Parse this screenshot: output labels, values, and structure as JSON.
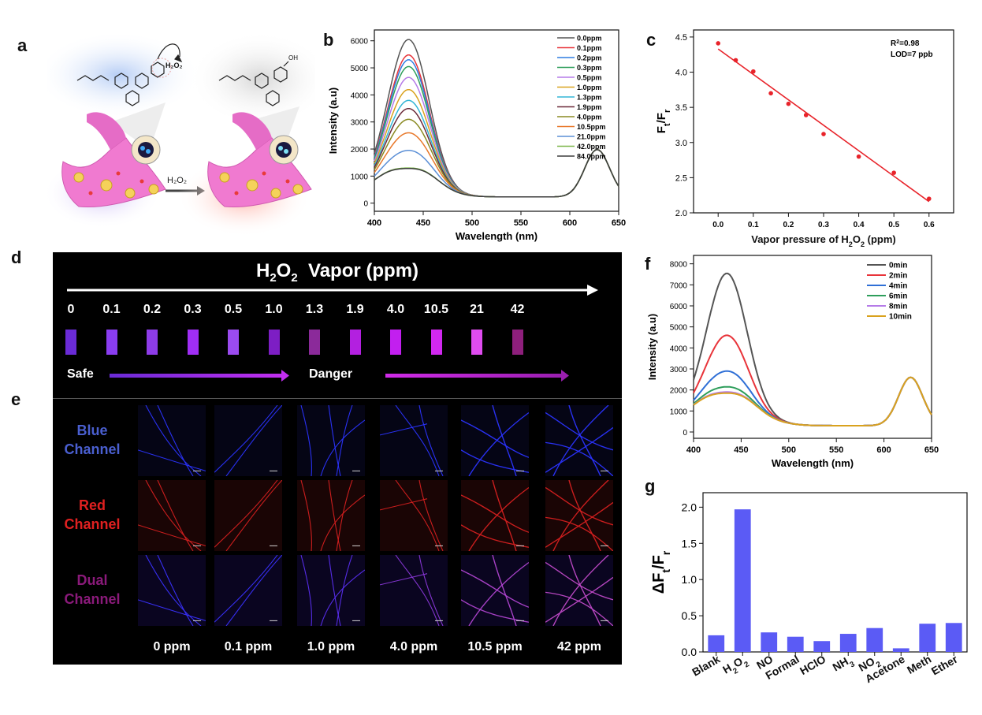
{
  "panel_labels": {
    "a": "a",
    "b": "b",
    "c": "c",
    "d": "d",
    "e": "e",
    "f": "f",
    "g": "g"
  },
  "schematic": {
    "reagent_left": "H2O2",
    "arrow_label": "H2O2",
    "oh_group": "OH"
  },
  "chart_data": [
    {
      "id": "b",
      "type": "line",
      "xlabel": "Wavelength (nm)",
      "ylabel": "Intensity (a.u)",
      "xlim": [
        400,
        650
      ],
      "ylim": [
        -300,
        6400
      ],
      "xticks": [
        400,
        450,
        500,
        550,
        600,
        650
      ],
      "yticks": [
        0,
        1000,
        2000,
        3000,
        4000,
        5000,
        6000
      ],
      "legend_position": "top-right",
      "peak_wavelength": 435,
      "series": [
        {
          "name": "0.0ppm",
          "color": "#555555",
          "peak": 6050
        },
        {
          "name": "0.1ppm",
          "color": "#e8343a",
          "peak": 5480
        },
        {
          "name": "0.2ppm",
          "color": "#2f7de1",
          "peak": 5300
        },
        {
          "name": "0.3ppm",
          "color": "#2e9e5b",
          "peak": 5050
        },
        {
          "name": "0.5ppm",
          "color": "#b57be8",
          "peak": 4650
        },
        {
          "name": "1.0ppm",
          "color": "#d9a21e",
          "peak": 4200
        },
        {
          "name": "1.3ppm",
          "color": "#33b5d6",
          "peak": 3800
        },
        {
          "name": "1.9ppm",
          "color": "#6b2a3a",
          "peak": 3500
        },
        {
          "name": "4.0ppm",
          "color": "#8a8a22",
          "peak": 3100
        },
        {
          "name": "10.5ppm",
          "color": "#e8782a",
          "peak": 2600
        },
        {
          "name": "21.0ppm",
          "color": "#5b8fd6",
          "peak": 1950
        },
        {
          "name": "42.0ppm",
          "color": "#7ab648",
          "peak": 1300
        },
        {
          "name": "84.0ppm",
          "color": "#3d3d3d",
          "peak": 1280
        }
      ]
    },
    {
      "id": "c",
      "type": "scatter",
      "xlabel": "Vapor pressure of H2O2 (ppm)",
      "ylabel": "Ft/Fr",
      "xlim": [
        -0.07,
        0.67
      ],
      "ylim": [
        2.0,
        4.6
      ],
      "xticks": [
        0.0,
        0.1,
        0.2,
        0.3,
        0.4,
        0.5,
        0.6
      ],
      "yticks": [
        2.0,
        2.5,
        3.0,
        3.5,
        4.0,
        4.5
      ],
      "annotations": [
        "R2=0.98",
        "LOD=7 ppb"
      ],
      "x": [
        0.0,
        0.05,
        0.1,
        0.15,
        0.2,
        0.25,
        0.3,
        0.4,
        0.5,
        0.6
      ],
      "y": [
        4.41,
        4.17,
        4.01,
        3.7,
        3.55,
        3.39,
        3.12,
        2.8,
        2.57,
        2.2
      ],
      "fit": {
        "x": [
          0.0,
          0.6
        ],
        "y": [
          4.33,
          2.16
        ],
        "color": "#e8232a"
      }
    },
    {
      "id": "f",
      "type": "line",
      "xlabel": "Wavelength (nm)",
      "ylabel": "Intensity (a.u)",
      "xlim": [
        400,
        650
      ],
      "ylim": [
        -300,
        8400
      ],
      "xticks": [
        400,
        450,
        500,
        550,
        600,
        650
      ],
      "yticks": [
        0,
        1000,
        2000,
        3000,
        4000,
        5000,
        6000,
        7000,
        8000
      ],
      "legend_position": "top-right",
      "series": [
        {
          "name": "0min",
          "color": "#555555",
          "peak": 7550
        },
        {
          "name": "2min",
          "color": "#e8343a",
          "peak": 4600
        },
        {
          "name": "4min",
          "color": "#2f6fd6",
          "peak": 2900
        },
        {
          "name": "6min",
          "color": "#2e9e5b",
          "peak": 2150
        },
        {
          "name": "8min",
          "color": "#b57be8",
          "peak": 1900
        },
        {
          "name": "10min",
          "color": "#d9a21e",
          "peak": 1850
        }
      ]
    },
    {
      "id": "g",
      "type": "bar",
      "ylabel": "ΔFt/Fr",
      "ylim": [
        0,
        2.2
      ],
      "yticks": [
        0.0,
        0.5,
        1.0,
        1.5,
        2.0
      ],
      "bar_color": "#5b5bf5",
      "categories": [
        "Blank",
        "H2O2",
        "NO",
        "Formal",
        "HClO",
        "NH3",
        "NO2",
        "Acetone",
        "Meth",
        "Ether"
      ],
      "values": [
        0.23,
        1.97,
        0.27,
        0.21,
        0.15,
        0.25,
        0.33,
        0.05,
        0.39,
        0.4
      ]
    }
  ],
  "panel_d": {
    "title_prefix": "H",
    "title_sub1": "2",
    "title_mid": "O",
    "title_sub2": "2",
    "title_suffix": "Vapor (ppm)",
    "concentrations": [
      "0",
      "0.1",
      "0.2",
      "0.3",
      "0.5",
      "1.0",
      "1.3",
      "1.9",
      "4.0",
      "10.5",
      "21",
      "42"
    ],
    "swatch_colors": [
      "#6a2bd6",
      "#8a3df0",
      "#8e3ce8",
      "#a02ef5",
      "#9b4bef",
      "#7d1ec4",
      "#8b2a9a",
      "#b320e0",
      "#c21fef",
      "#d128f0",
      "#e04cf0",
      "#8e1f7c"
    ],
    "safe_label": "Safe",
    "danger_label": "Danger"
  },
  "panel_e": {
    "channels": [
      {
        "label_line1": "Blue",
        "label_line2": "Channel",
        "label_color": "#4a5fd0",
        "line_color": "#2b34ff"
      },
      {
        "label_line1": "Red",
        "label_line2": "Channel",
        "label_color": "#e02020",
        "line_color": "#d62020"
      },
      {
        "label_line1": "Dual",
        "label_line2": "Channel",
        "label_color": "#8a1a7a",
        "line_color": "#7a2ee8"
      }
    ],
    "concentrations": [
      "0 ppm",
      "0.1 ppm",
      "1.0 ppm",
      "4.0 ppm",
      "10.5 ppm",
      "42 ppm"
    ]
  }
}
